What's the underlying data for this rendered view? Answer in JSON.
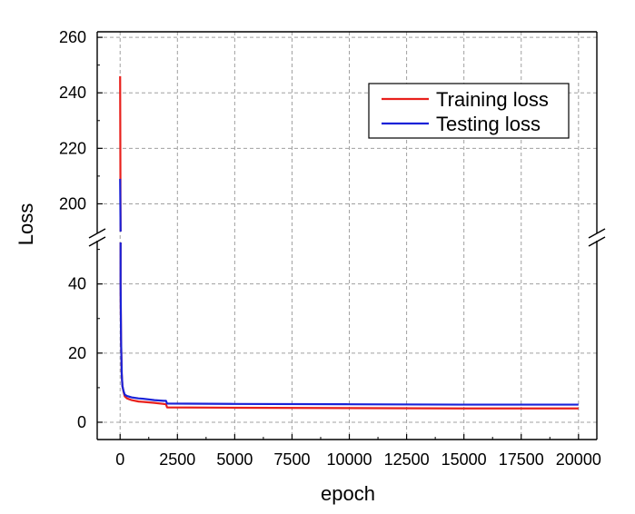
{
  "chart_data": {
    "type": "line",
    "xlabel": "epoch",
    "ylabel": "Loss",
    "xlim": [
      -1000,
      20800
    ],
    "xticks": [
      0,
      2500,
      5000,
      7500,
      10000,
      12500,
      15000,
      17500,
      20000
    ],
    "xtick_labels": [
      "0",
      "2500",
      "5000",
      "7500",
      "10000",
      "12500",
      "15000",
      "17500",
      "20000"
    ],
    "y_axis_break": {
      "lower_range": [
        -5,
        52
      ],
      "upper_range": [
        190,
        262
      ],
      "lower_ticks": [
        0,
        20,
        40
      ],
      "upper_ticks": [
        200,
        220,
        240,
        260
      ],
      "tick_labels": [
        "0",
        "20",
        "40",
        "200",
        "220",
        "240",
        "260"
      ]
    },
    "grid": true,
    "legend": {
      "placement": "top-right"
    },
    "series": [
      {
        "name": "Training loss",
        "color": "#e8201c",
        "x": [
          0,
          20,
          40,
          70,
          100,
          150,
          200,
          300,
          500,
          800,
          1000,
          1500,
          1900,
          2000,
          2050,
          5000,
          10000,
          15000,
          20000
        ],
        "y": [
          246,
          40,
          24,
          14,
          10.5,
          8.8,
          7.5,
          6.9,
          6.4,
          6.0,
          5.9,
          5.6,
          5.3,
          5.2,
          4.3,
          4.2,
          4.1,
          4.0,
          4.0
        ]
      },
      {
        "name": "Testing loss",
        "color": "#1a22d8",
        "x": [
          0,
          20,
          40,
          70,
          100,
          150,
          200,
          300,
          500,
          800,
          1000,
          1500,
          1900,
          2000,
          2050,
          5000,
          10000,
          15000,
          20000
        ],
        "y": [
          209,
          40,
          24,
          14,
          10.5,
          9.0,
          8.0,
          7.6,
          7.2,
          6.9,
          6.8,
          6.4,
          6.2,
          6.2,
          5.4,
          5.3,
          5.2,
          5.1,
          5.1
        ]
      }
    ]
  }
}
